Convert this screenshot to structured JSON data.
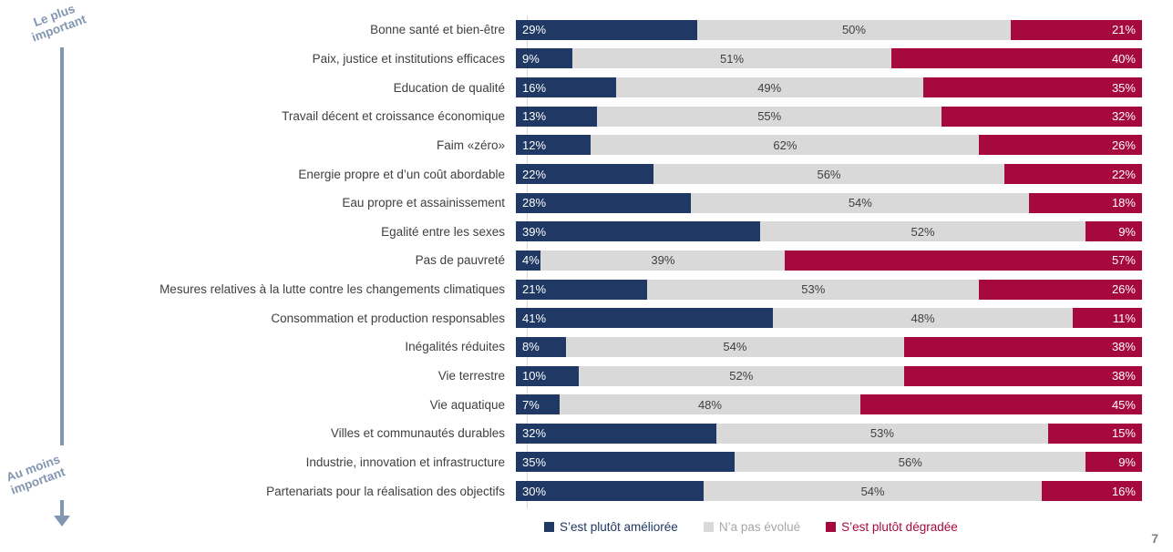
{
  "page": {
    "number": "7"
  },
  "annotations": {
    "top_label": "Le plus important",
    "bottom_label": "Au moins important",
    "arrow_color": "#8296B1"
  },
  "colors": {
    "improved": "#1F3864",
    "unchanged": "#D9D9D9",
    "degraded": "#A6093D",
    "category_text": "#404040",
    "axis_line": "#D9D9D9",
    "page_number": "#808080"
  },
  "chart_data": {
    "type": "bar",
    "orientation": "horizontal-stacked",
    "value_suffix": "%",
    "xlim": [
      0,
      100
    ],
    "grid": false,
    "legend_position": "bottom",
    "categories": [
      "Bonne santé et bien-être",
      "Paix, justice et institutions efficaces",
      "Education de qualité",
      "Travail décent et croissance économique",
      "Faim «zéro»",
      "Energie propre et d’un coût abordable",
      "Eau propre et assainissement",
      "Egalité entre les sexes",
      "Pas de pauvreté",
      "Mesures relatives à la lutte contre les changements climatiques",
      "Consommation et production responsables",
      "Inégalités réduites",
      "Vie terrestre",
      "Vie aquatique",
      "Villes et communautés durables",
      "Industrie, innovation et infrastructure",
      "Partenariats pour la réalisation des objectifs"
    ],
    "series": [
      {
        "key": "improved",
        "name": "S’est plutôt améliorée",
        "color": "#1F3864",
        "legend_text_color": "#1F3864",
        "values": [
          29,
          9,
          16,
          13,
          12,
          22,
          28,
          39,
          4,
          21,
          41,
          8,
          10,
          7,
          32,
          35,
          30
        ]
      },
      {
        "key": "unchanged",
        "name": "N’a pas évolué",
        "color": "#D9D9D9",
        "legend_text_color": "#A6A6A6",
        "values": [
          50,
          51,
          49,
          55,
          62,
          56,
          54,
          52,
          39,
          53,
          48,
          54,
          52,
          48,
          53,
          56,
          54
        ]
      },
      {
        "key": "degraded",
        "name": "S’est plutôt dégradée",
        "color": "#A6093D",
        "legend_text_color": "#A6093D",
        "values": [
          21,
          40,
          35,
          32,
          26,
          22,
          18,
          9,
          57,
          26,
          11,
          38,
          38,
          45,
          15,
          9,
          16
        ]
      }
    ]
  }
}
